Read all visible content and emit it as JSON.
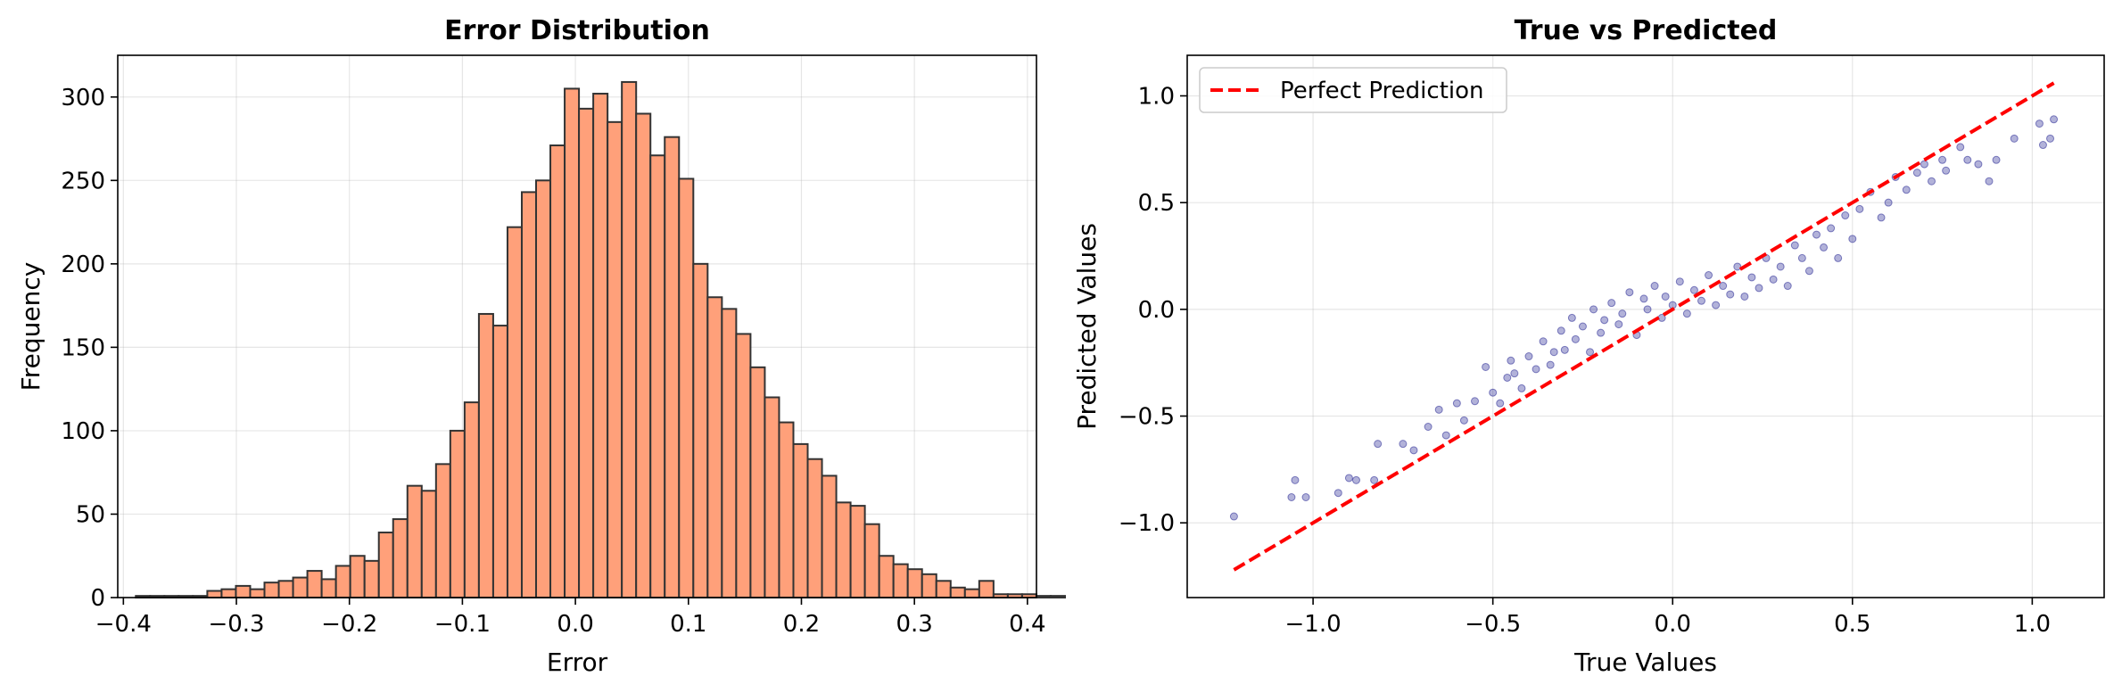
{
  "chart_data": [
    {
      "type": "bar",
      "title": "Error Distribution",
      "xlabel": "Error",
      "ylabel": "Frequency",
      "xlim": [
        -0.405,
        0.408
      ],
      "ylim": [
        0,
        325
      ],
      "grid": true,
      "bar_color": "#FFA07A",
      "edge_color": "#333333",
      "xticks": [
        -0.4,
        -0.3,
        -0.2,
        -0.1,
        0.0,
        0.1,
        0.2,
        0.3,
        0.4
      ],
      "xtick_labels": [
        "−0.4",
        "−0.3",
        "−0.2",
        "−0.1",
        "0.0",
        "0.1",
        "0.2",
        "0.3",
        "0.4"
      ],
      "yticks": [
        0,
        50,
        100,
        150,
        200,
        250,
        300
      ],
      "ytick_labels": [
        "0",
        "50",
        "100",
        "150",
        "200",
        "250",
        "300"
      ],
      "bin_start": -0.389,
      "bin_width": 0.01265,
      "values": [
        1,
        1,
        1,
        1,
        1,
        4,
        5,
        7,
        5,
        9,
        10,
        12,
        16,
        11,
        19,
        25,
        22,
        39,
        47,
        67,
        64,
        80,
        100,
        117,
        170,
        163,
        222,
        243,
        250,
        271,
        305,
        293,
        302,
        285,
        309,
        290,
        265,
        276,
        251,
        200,
        180,
        173,
        158,
        138,
        120,
        105,
        92,
        83,
        73,
        57,
        55,
        44,
        25,
        20,
        17,
        14,
        10,
        6,
        5,
        10,
        2,
        2,
        2,
        1,
        1
      ]
    },
    {
      "type": "scatter",
      "title": "True vs Predicted",
      "xlabel": "True Values",
      "ylabel": "Predicted Values",
      "xlim": [
        -1.35,
        1.2
      ],
      "ylim": [
        -1.35,
        1.19
      ],
      "grid": true,
      "point_color": "#000080",
      "point_alpha": 0.3,
      "xticks": [
        -1.0,
        -0.5,
        0.0,
        0.5,
        1.0
      ],
      "xtick_labels": [
        "−1.0",
        "−0.5",
        "0.0",
        "0.5",
        "1.0"
      ],
      "yticks": [
        -1.0,
        -0.5,
        0.0,
        0.5,
        1.0
      ],
      "ytick_labels": [
        "−1.0",
        "−0.5",
        "0.0",
        "0.5",
        "1.0"
      ],
      "legend_position": "top-left",
      "reference_line": {
        "name": "Perfect Prediction",
        "color": "#ff0000",
        "style": "dashed",
        "x": [
          -1.22,
          1.06
        ],
        "y": [
          -1.22,
          1.06
        ]
      },
      "points": [
        [
          -1.22,
          -0.97
        ],
        [
          -1.05,
          -0.8
        ],
        [
          -1.02,
          -0.88
        ],
        [
          -1.06,
          -0.88
        ],
        [
          -0.9,
          -0.79
        ],
        [
          -0.88,
          -0.8
        ],
        [
          -0.93,
          -0.86
        ],
        [
          -0.83,
          -0.8
        ],
        [
          -0.82,
          -0.63
        ],
        [
          -0.75,
          -0.63
        ],
        [
          -0.72,
          -0.66
        ],
        [
          -0.68,
          -0.55
        ],
        [
          -0.65,
          -0.47
        ],
        [
          -0.63,
          -0.59
        ],
        [
          -0.6,
          -0.44
        ],
        [
          -0.58,
          -0.52
        ],
        [
          -0.55,
          -0.43
        ],
        [
          -0.52,
          -0.27
        ],
        [
          -0.5,
          -0.39
        ],
        [
          -0.48,
          -0.44
        ],
        [
          -0.46,
          -0.32
        ],
        [
          -0.45,
          -0.24
        ],
        [
          -0.44,
          -0.3
        ],
        [
          -0.42,
          -0.37
        ],
        [
          -0.4,
          -0.22
        ],
        [
          -0.38,
          -0.28
        ],
        [
          -0.36,
          -0.15
        ],
        [
          -0.34,
          -0.26
        ],
        [
          -0.33,
          -0.2
        ],
        [
          -0.31,
          -0.1
        ],
        [
          -0.3,
          -0.19
        ],
        [
          -0.28,
          -0.04
        ],
        [
          -0.27,
          -0.14
        ],
        [
          -0.25,
          -0.08
        ],
        [
          -0.23,
          -0.2
        ],
        [
          -0.22,
          0.0
        ],
        [
          -0.2,
          -0.11
        ],
        [
          -0.19,
          -0.05
        ],
        [
          -0.17,
          0.03
        ],
        [
          -0.15,
          -0.07
        ],
        [
          -0.14,
          -0.02
        ],
        [
          -0.12,
          0.08
        ],
        [
          -0.1,
          -0.12
        ],
        [
          -0.08,
          0.05
        ],
        [
          -0.07,
          0.0
        ],
        [
          -0.05,
          0.11
        ],
        [
          -0.03,
          -0.04
        ],
        [
          -0.02,
          0.06
        ],
        [
          0.0,
          0.02
        ],
        [
          0.02,
          0.13
        ],
        [
          0.04,
          -0.02
        ],
        [
          0.06,
          0.09
        ],
        [
          0.08,
          0.04
        ],
        [
          0.1,
          0.16
        ],
        [
          0.12,
          0.02
        ],
        [
          0.14,
          0.11
        ],
        [
          0.16,
          0.07
        ],
        [
          0.18,
          0.2
        ],
        [
          0.2,
          0.06
        ],
        [
          0.22,
          0.15
        ],
        [
          0.24,
          0.1
        ],
        [
          0.26,
          0.24
        ],
        [
          0.28,
          0.14
        ],
        [
          0.3,
          0.2
        ],
        [
          0.32,
          0.11
        ],
        [
          0.34,
          0.3
        ],
        [
          0.36,
          0.24
        ],
        [
          0.38,
          0.18
        ],
        [
          0.4,
          0.35
        ],
        [
          0.42,
          0.29
        ],
        [
          0.44,
          0.38
        ],
        [
          0.46,
          0.24
        ],
        [
          0.48,
          0.44
        ],
        [
          0.5,
          0.33
        ],
        [
          0.52,
          0.47
        ],
        [
          0.55,
          0.55
        ],
        [
          0.58,
          0.43
        ],
        [
          0.6,
          0.5
        ],
        [
          0.62,
          0.62
        ],
        [
          0.65,
          0.56
        ],
        [
          0.68,
          0.64
        ],
        [
          0.7,
          0.68
        ],
        [
          0.72,
          0.6
        ],
        [
          0.75,
          0.7
        ],
        [
          0.76,
          0.65
        ],
        [
          0.8,
          0.76
        ],
        [
          0.82,
          0.7
        ],
        [
          0.85,
          0.68
        ],
        [
          0.88,
          0.6
        ],
        [
          0.9,
          0.7
        ],
        [
          0.95,
          0.8
        ],
        [
          1.02,
          0.87
        ],
        [
          1.03,
          0.77
        ],
        [
          1.05,
          0.8
        ],
        [
          1.06,
          0.89
        ]
      ]
    }
  ]
}
